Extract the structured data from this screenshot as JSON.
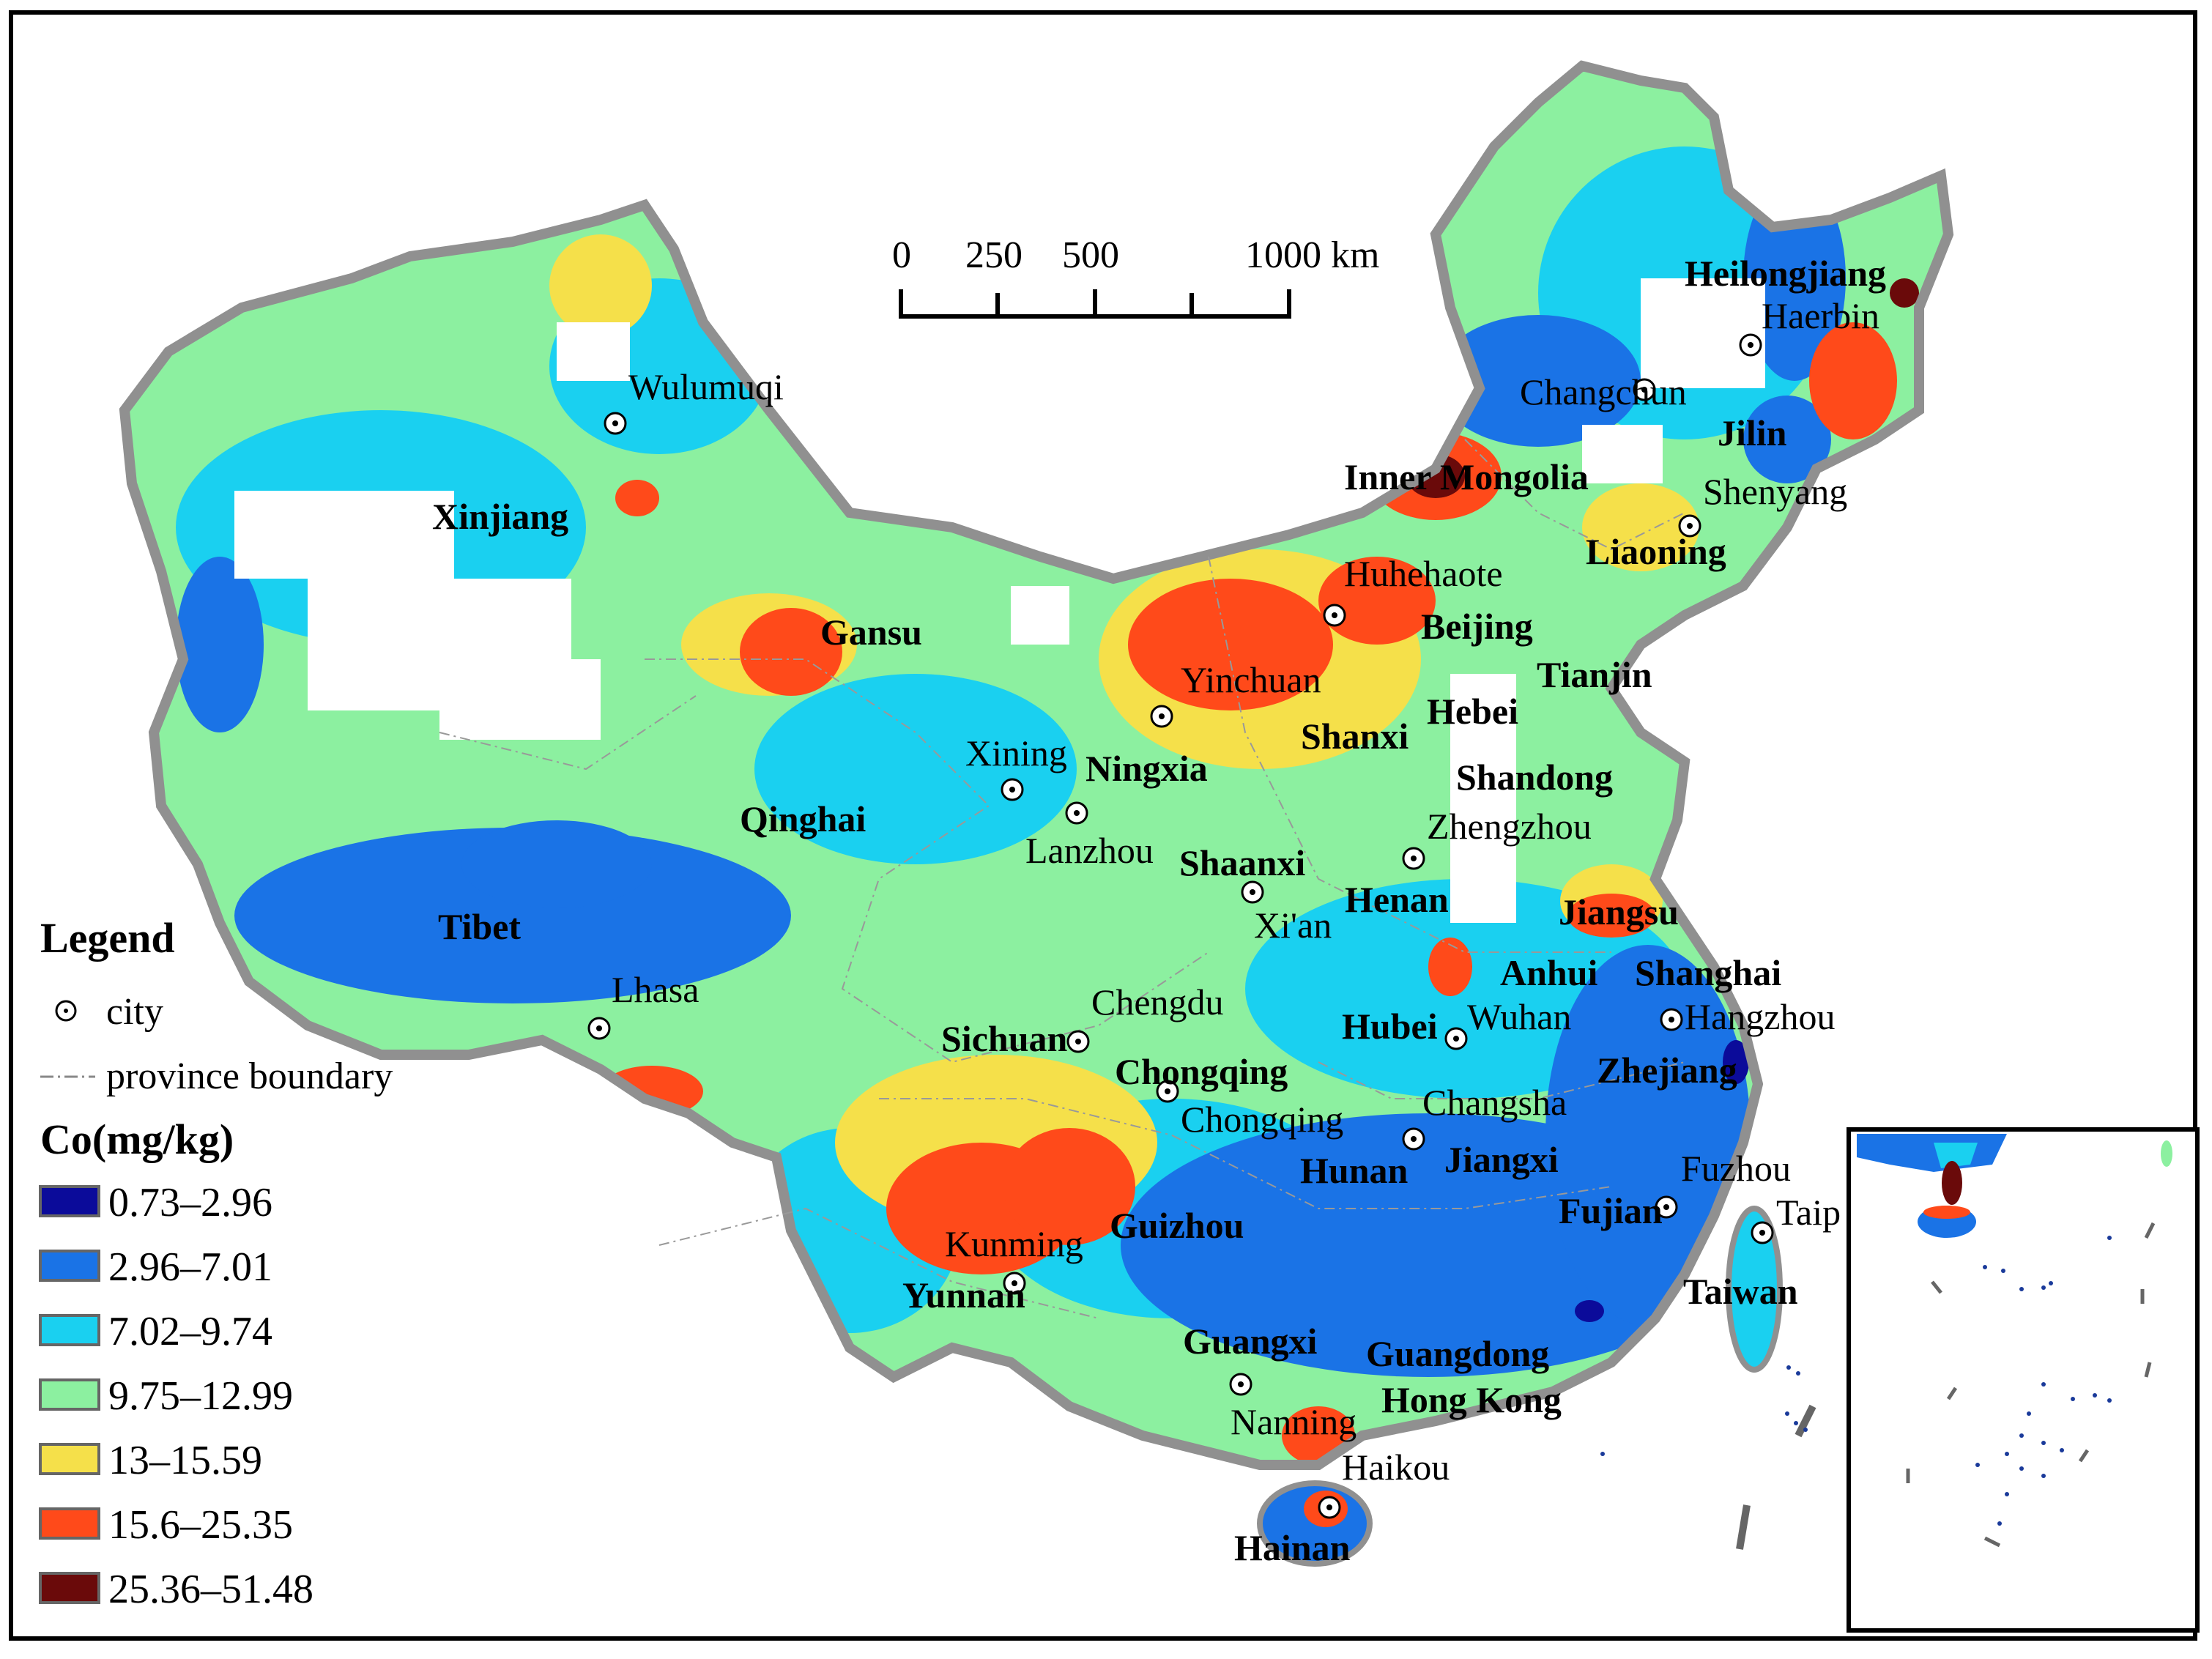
{
  "scale_bar": {
    "ticks": [
      "0",
      "250",
      "500",
      "1000 km"
    ]
  },
  "legend": {
    "title": "Legend",
    "city_label": "city",
    "boundary_label": "province boundary",
    "variable_title": "Co(mg/kg)",
    "classes": [
      {
        "label": "0.73–2.96",
        "color": "#0b0b9a"
      },
      {
        "label": "2.96–7.01",
        "color": "#1a73e6"
      },
      {
        "label": "7.02–9.74",
        "color": "#1ad0f0"
      },
      {
        "label": "9.75–12.99",
        "color": "#8cf0a0"
      },
      {
        "label": "13–15.59",
        "color": "#f5e04a"
      },
      {
        "label": "15.6–25.35",
        "color": "#ff4a1a"
      },
      {
        "label": "25.36–51.48",
        "color": "#6a0a0a"
      }
    ]
  },
  "provinces": [
    "Heilongjiang",
    "Jilin",
    "Liaoning",
    "Inner Mongolia",
    "Xinjiang",
    "Gansu",
    "Beijing",
    "Tianjin",
    "Hebei",
    "Shanxi",
    "Shandong",
    "Ningxia",
    "Qinghai",
    "Shaanxi",
    "Henan",
    "Jiangsu",
    "Tibet",
    "Anhui",
    "Shanghai",
    "Hubei",
    "Sichuan",
    "Chongqing",
    "Zhejiang",
    "Hunan",
    "Jiangxi",
    "Fujian",
    "Guizhou",
    "Yunnan",
    "Taiwan",
    "Guangxi",
    "Guangdong",
    "Hong Kong",
    "Hainan"
  ],
  "cities": [
    "Haerbin",
    "Changchun",
    "Shenyang",
    "Wulumuqi",
    "Huhehaote",
    "Yinchuan",
    "Xining",
    "Lanzhou",
    "Zhengzhou",
    "Xi'an",
    "Lhasa",
    "Chengdu",
    "Wuhan",
    "Hangzhou",
    "Chongqing",
    "Changsha",
    "Fuzhou",
    "Taip",
    "Kunming",
    "Nanning",
    "Haikou"
  ]
}
